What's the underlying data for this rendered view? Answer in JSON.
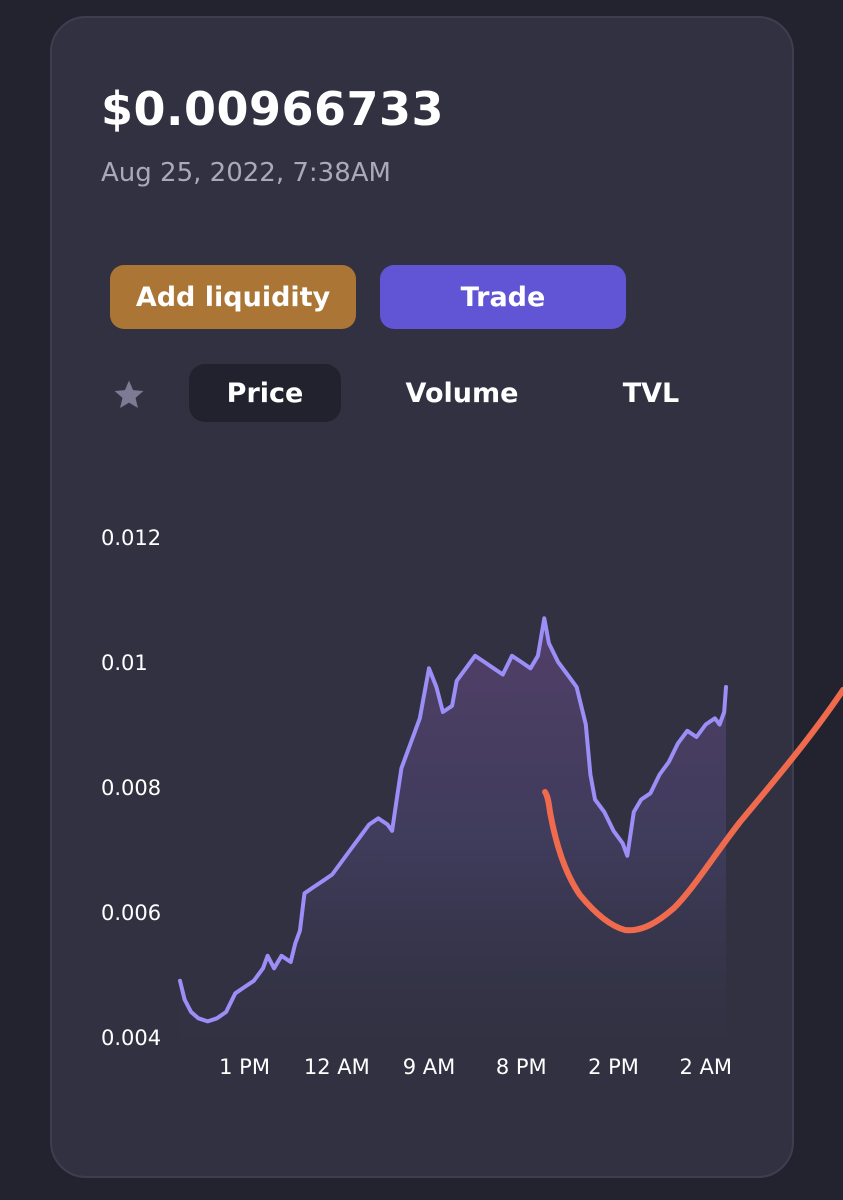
{
  "header": {
    "price": "$0.00966733",
    "timestamp": "Aug 25, 2022, 7:38AM"
  },
  "actions": {
    "add_liquidity_label": "Add liquidity",
    "trade_label": "Trade"
  },
  "tabs": {
    "star_icon": "star-icon",
    "items": [
      {
        "label": "Price",
        "selected": true
      },
      {
        "label": "Volume",
        "selected": false
      },
      {
        "label": "TVL",
        "selected": false
      }
    ]
  },
  "colors": {
    "card_bg": "#313141",
    "add_liquidity": "#ab7535",
    "trade": "#6155d6",
    "line": "#9b8ef7",
    "annotation": "#f06a4e"
  },
  "chart_data": {
    "type": "area",
    "y_ticks": [
      "0.012",
      "0.01",
      "0.008",
      "0.006",
      "0.004"
    ],
    "x_ticks": [
      "1 PM",
      "12 AM",
      "9 AM",
      "8 PM",
      "2 PM",
      "2 AM"
    ],
    "ylim": [
      0.004,
      0.012
    ],
    "x_tick_positions": [
      0.5,
      1.5,
      2.5,
      3.5,
      4.5,
      5.5
    ],
    "xlim": [
      -0.2,
      5.85
    ],
    "series": [
      {
        "values": [
          [
            -0.2,
            0.0049
          ],
          [
            -0.15,
            0.0046
          ],
          [
            -0.08,
            0.0044
          ],
          [
            0.0,
            0.0043
          ],
          [
            0.1,
            0.00425
          ],
          [
            0.2,
            0.0043
          ],
          [
            0.3,
            0.0044
          ],
          [
            0.4,
            0.0047
          ],
          [
            0.5,
            0.0048
          ],
          [
            0.6,
            0.0049
          ],
          [
            0.7,
            0.0051
          ],
          [
            0.75,
            0.0053
          ],
          [
            0.82,
            0.0051
          ],
          [
            0.9,
            0.0053
          ],
          [
            1.0,
            0.0052
          ],
          [
            1.05,
            0.0055
          ],
          [
            1.1,
            0.0057
          ],
          [
            1.15,
            0.0063
          ],
          [
            1.25,
            0.0064
          ],
          [
            1.35,
            0.0065
          ],
          [
            1.45,
            0.0066
          ],
          [
            1.55,
            0.0068
          ],
          [
            1.65,
            0.007
          ],
          [
            1.75,
            0.0072
          ],
          [
            1.85,
            0.0074
          ],
          [
            1.95,
            0.0075
          ],
          [
            2.05,
            0.0074
          ],
          [
            2.1,
            0.0073
          ],
          [
            2.15,
            0.0078
          ],
          [
            2.2,
            0.0083
          ],
          [
            2.3,
            0.0087
          ],
          [
            2.4,
            0.0091
          ],
          [
            2.5,
            0.0099
          ],
          [
            2.58,
            0.0096
          ],
          [
            2.65,
            0.0092
          ],
          [
            2.75,
            0.0093
          ],
          [
            2.8,
            0.0097
          ],
          [
            2.9,
            0.0099
          ],
          [
            3.0,
            0.0101
          ],
          [
            3.1,
            0.01
          ],
          [
            3.2,
            0.0099
          ],
          [
            3.3,
            0.0098
          ],
          [
            3.4,
            0.0101
          ],
          [
            3.5,
            0.01
          ],
          [
            3.6,
            0.0099
          ],
          [
            3.68,
            0.0101
          ],
          [
            3.75,
            0.0107
          ],
          [
            3.8,
            0.0103
          ],
          [
            3.9,
            0.01
          ],
          [
            4.0,
            0.0098
          ],
          [
            4.1,
            0.0096
          ],
          [
            4.2,
            0.009
          ],
          [
            4.25,
            0.0082
          ],
          [
            4.3,
            0.0078
          ],
          [
            4.4,
            0.0076
          ],
          [
            4.5,
            0.0073
          ],
          [
            4.6,
            0.0071
          ],
          [
            4.65,
            0.0069
          ],
          [
            4.72,
            0.0076
          ],
          [
            4.8,
            0.0078
          ],
          [
            4.9,
            0.0079
          ],
          [
            5.0,
            0.0082
          ],
          [
            5.1,
            0.0084
          ],
          [
            5.2,
            0.0087
          ],
          [
            5.3,
            0.0089
          ],
          [
            5.4,
            0.0088
          ],
          [
            5.5,
            0.009
          ],
          [
            5.6,
            0.0091
          ],
          [
            5.65,
            0.009
          ],
          [
            5.7,
            0.0092
          ],
          [
            5.72,
            0.0096
          ]
        ]
      }
    ],
    "grid": false
  }
}
